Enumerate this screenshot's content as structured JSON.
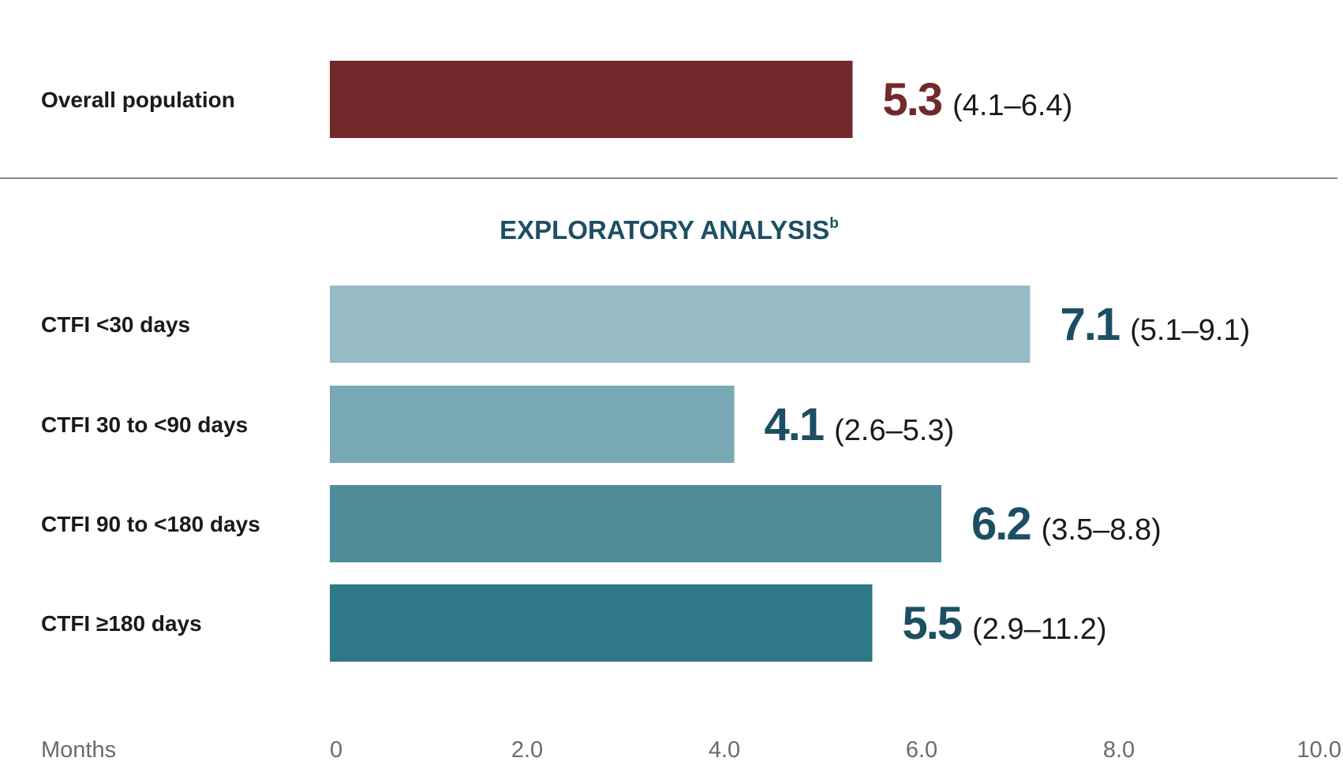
{
  "chart_data": {
    "type": "bar",
    "orientation": "horizontal",
    "xlabel": "Months",
    "xlim": [
      0,
      10
    ],
    "xticks": [
      "0",
      "2.0",
      "4.0",
      "6.0",
      "8.0",
      "10.0"
    ],
    "overall": {
      "category": "Overall population",
      "value": 5.3,
      "value_label": "5.3",
      "ci_label": "(4.1–6.4)",
      "color": "#72292c"
    },
    "exploratory": {
      "title": "EXPLORATORY ANALYSIS",
      "title_sup": "b",
      "value_color": "#1d4f63",
      "bars": [
        {
          "category": "CTFI <30 days",
          "value": 7.1,
          "value_label": "7.1",
          "ci_label": "(5.1–9.1)",
          "color": "#98bcc5"
        },
        {
          "category": "CTFI 30 to <90 days",
          "value": 4.1,
          "value_label": "4.1",
          "ci_label": "(2.6–5.3)",
          "color": "#79a9b4"
        },
        {
          "category": "CTFI 90 to <180 days",
          "value": 6.2,
          "value_label": "6.2",
          "ci_label": "(3.5–8.8)",
          "color": "#4f8d9b"
        },
        {
          "category": "CTFI ≥180 days",
          "value": 5.5,
          "value_label": "5.5",
          "ci_label": "(2.9–11.2)",
          "color": "#2f7887"
        }
      ]
    }
  }
}
